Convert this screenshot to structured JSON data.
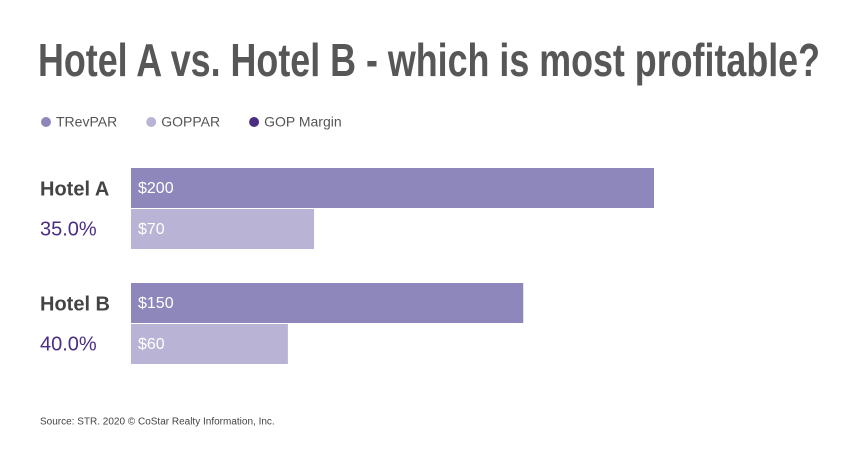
{
  "chart_data": {
    "type": "bar",
    "orientation": "horizontal",
    "title": "Hotel A vs. Hotel B - which is most profitable?",
    "categories": [
      "Hotel A",
      "Hotel B"
    ],
    "series": [
      {
        "name": "TRevPAR",
        "color": "#8e87bc",
        "values": [
          200,
          150
        ],
        "value_labels": [
          "$200",
          "$150"
        ]
      },
      {
        "name": "GOPPAR",
        "color": "#b9b3d6",
        "values": [
          70,
          60
        ],
        "value_labels": [
          "$70",
          "$60"
        ]
      },
      {
        "name": "GOP Margin",
        "color": "#4b2e83",
        "values": [
          35.0,
          40.0
        ],
        "value_labels": [
          "35.0%",
          "40.0%"
        ],
        "mark": "text"
      }
    ],
    "source": "Source: STR. 2020 © CoStar Realty Information, Inc."
  }
}
